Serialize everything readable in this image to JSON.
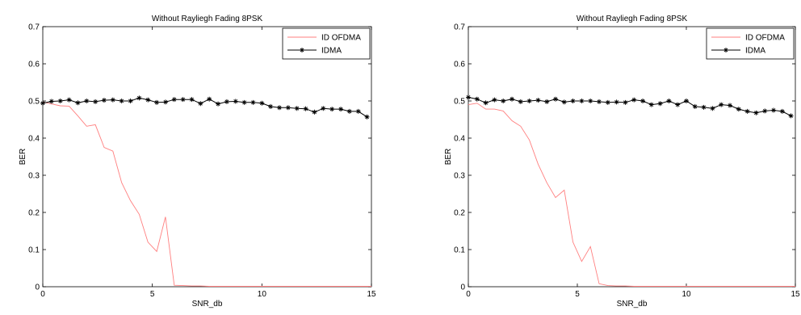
{
  "chart_data": [
    {
      "type": "line",
      "title": "Without Rayliegh Fading 8PSK",
      "xlabel": "SNR_db",
      "ylabel": "BER",
      "xlim": [
        0,
        15
      ],
      "ylim": [
        0,
        0.7
      ],
      "xticks": [
        "0",
        "5",
        "10",
        "15"
      ],
      "yticks": [
        "0",
        "0.1",
        "0.2",
        "0.3",
        "0.4",
        "0.5",
        "0.6",
        "0.7"
      ],
      "legend_position": "top-right",
      "grid": false,
      "series": [
        {
          "name": "ID OFDMA",
          "color": "#ff7f7f",
          "marker": "none",
          "x": [
            0,
            0.4,
            0.8,
            1.2,
            1.6,
            2.0,
            2.4,
            2.8,
            3.2,
            3.6,
            4.0,
            4.4,
            4.8,
            5.2,
            5.6,
            6.0,
            6.4,
            6.8,
            7.2,
            7.6,
            8.0,
            9.0,
            10.0,
            11.0,
            12.0,
            13.0,
            14.0,
            15.0
          ],
          "y": [
            0.497,
            0.492,
            0.487,
            0.486,
            0.46,
            0.432,
            0.436,
            0.375,
            0.365,
            0.28,
            0.232,
            0.195,
            0.12,
            0.095,
            0.188,
            0.004,
            0.003,
            0.002,
            0.002,
            0.001,
            0.001,
            0.001,
            0.001,
            0.001,
            0.001,
            0.001,
            0.001,
            0.001
          ]
        },
        {
          "name": "IDMA",
          "color": "#000000",
          "marker": "star",
          "x": [
            0,
            0.4,
            0.8,
            1.2,
            1.6,
            2.0,
            2.4,
            2.8,
            3.2,
            3.6,
            4.0,
            4.4,
            4.8,
            5.2,
            5.6,
            6.0,
            6.4,
            6.8,
            7.2,
            7.6,
            8.0,
            8.4,
            8.8,
            9.2,
            9.6,
            10.0,
            10.4,
            10.8,
            11.2,
            11.6,
            12.0,
            12.4,
            12.8,
            13.2,
            13.6,
            14.0,
            14.4,
            14.8
          ],
          "y": [
            0.494,
            0.499,
            0.5,
            0.503,
            0.495,
            0.5,
            0.498,
            0.502,
            0.503,
            0.5,
            0.5,
            0.508,
            0.503,
            0.496,
            0.497,
            0.504,
            0.504,
            0.504,
            0.493,
            0.505,
            0.492,
            0.498,
            0.499,
            0.496,
            0.496,
            0.494,
            0.485,
            0.482,
            0.482,
            0.48,
            0.479,
            0.47,
            0.48,
            0.478,
            0.478,
            0.472,
            0.472,
            0.457
          ]
        }
      ]
    },
    {
      "type": "line",
      "title": "Without Rayliegh Fading 8PSK",
      "xlabel": "SNR_db",
      "ylabel": "BER",
      "xlim": [
        0,
        15
      ],
      "ylim": [
        0,
        0.7
      ],
      "xticks": [
        "0",
        "5",
        "10",
        "15"
      ],
      "yticks": [
        "0",
        "0.1",
        "0.2",
        "0.3",
        "0.4",
        "0.5",
        "0.6",
        "0.7"
      ],
      "legend_position": "top-right",
      "grid": false,
      "series": [
        {
          "name": "ID OFDMA",
          "color": "#ff7f7f",
          "marker": "none",
          "x": [
            0,
            0.4,
            0.8,
            1.2,
            1.6,
            2.0,
            2.4,
            2.8,
            3.2,
            3.6,
            4.0,
            4.4,
            4.8,
            5.2,
            5.6,
            6.0,
            6.4,
            6.8,
            7.2,
            7.6,
            8.0,
            9.0,
            10.0,
            11.0,
            12.0,
            13.0,
            14.0,
            15.0
          ],
          "y": [
            0.49,
            0.494,
            0.478,
            0.478,
            0.473,
            0.447,
            0.432,
            0.395,
            0.33,
            0.28,
            0.24,
            0.26,
            0.12,
            0.068,
            0.108,
            0.008,
            0.003,
            0.002,
            0.002,
            0.001,
            0.001,
            0.001,
            0.001,
            0.001,
            0.001,
            0.001,
            0.001,
            0.001
          ]
        },
        {
          "name": "IDMA",
          "color": "#000000",
          "marker": "star",
          "x": [
            0,
            0.4,
            0.8,
            1.2,
            1.6,
            2.0,
            2.4,
            2.8,
            3.2,
            3.6,
            4.0,
            4.4,
            4.8,
            5.2,
            5.6,
            6.0,
            6.4,
            6.8,
            7.2,
            7.6,
            8.0,
            8.4,
            8.8,
            9.2,
            9.6,
            10.0,
            10.4,
            10.8,
            11.2,
            11.6,
            12.0,
            12.4,
            12.8,
            13.2,
            13.6,
            14.0,
            14.4,
            14.8
          ],
          "y": [
            0.51,
            0.505,
            0.495,
            0.503,
            0.5,
            0.505,
            0.498,
            0.5,
            0.502,
            0.498,
            0.505,
            0.497,
            0.5,
            0.5,
            0.5,
            0.498,
            0.496,
            0.497,
            0.496,
            0.503,
            0.5,
            0.49,
            0.493,
            0.5,
            0.49,
            0.5,
            0.485,
            0.483,
            0.48,
            0.49,
            0.488,
            0.478,
            0.472,
            0.468,
            0.473,
            0.475,
            0.472,
            0.46
          ]
        }
      ]
    }
  ]
}
